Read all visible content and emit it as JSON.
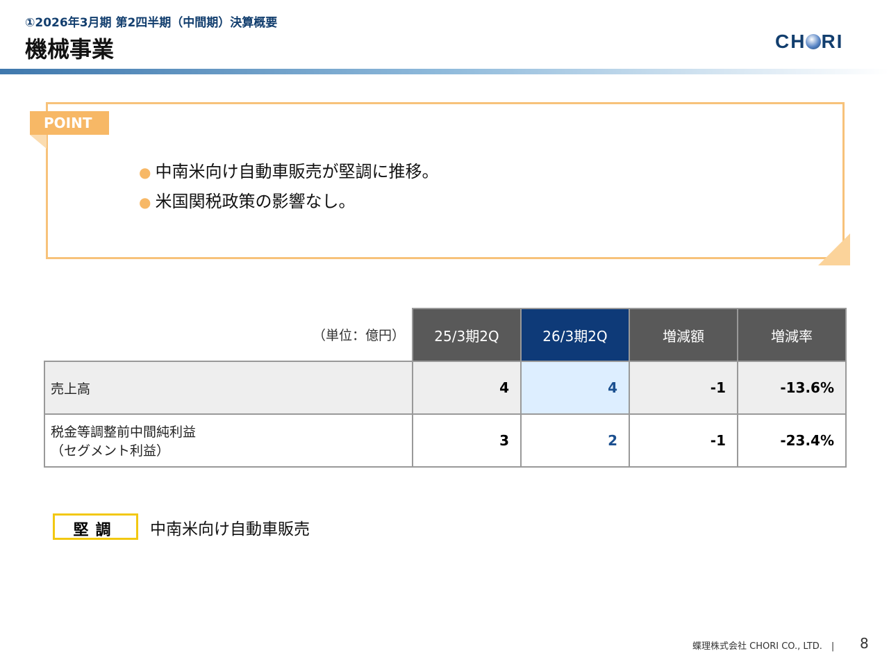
{
  "header": {
    "subtitle": "①2026年3月期 第2四半期（中間期）決算概要",
    "title": "機械事業",
    "logo": "CHORI"
  },
  "point": {
    "label": "POINT",
    "items": [
      "中南米向け自動車販売が堅調に推移。",
      "米国関税政策の影響なし。"
    ]
  },
  "table": {
    "unit": "（単位：億円）",
    "columns": [
      "25/3期2Q",
      "26/3期2Q",
      "増減額",
      "増減率"
    ],
    "rows": [
      {
        "label": "売上高",
        "values": [
          "4",
          "4",
          "-1",
          "-13.6%"
        ]
      },
      {
        "label": "税金等調整前中間純利益",
        "label2": "（セグメント利益）",
        "values": [
          "3",
          "2",
          "-1",
          "-23.4%"
        ]
      }
    ]
  },
  "status": {
    "tag": "堅調",
    "text": "中南米向け自動車販売"
  },
  "footer": {
    "company": "蝶理株式会社 CHORI CO., LTD.　|",
    "page": "8"
  },
  "colors": {
    "navy": "#123e6e",
    "orange": "#f7b866",
    "current": "#0e3a78"
  }
}
